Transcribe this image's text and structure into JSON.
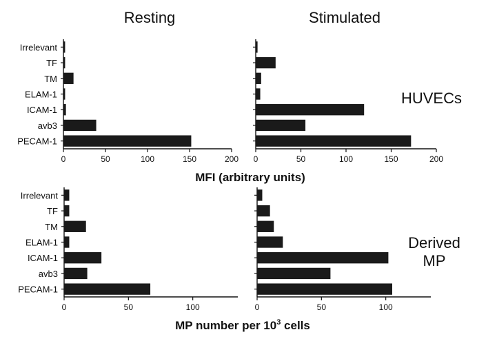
{
  "column_titles": [
    "Resting",
    "Stimulated"
  ],
  "row_labels": [
    "HUVECs",
    "Derived MP"
  ],
  "axis_labels": {
    "top": "MFI (arbitrary units)",
    "bottom": "MP number per 10",
    "bottom_superscript": "3",
    "bottom_suffix": " cells"
  },
  "chart_data": [
    {
      "type": "bar",
      "orientation": "horizontal",
      "panel": "HUVECs resting",
      "categories": [
        "Irrelevant",
        "TF",
        "TM",
        "ELAM-1",
        "ICAM-1",
        "avb3",
        "PECAM-1"
      ],
      "values": [
        2,
        2,
        12,
        2,
        3,
        39,
        152
      ],
      "title": "Resting",
      "xlabel": "MFI (arbitrary units)",
      "xlim": [
        0,
        200
      ],
      "xticks": [
        0,
        50,
        100,
        150,
        200
      ]
    },
    {
      "type": "bar",
      "orientation": "horizontal",
      "panel": "HUVECs stimulated",
      "categories": [
        "Irrelevant",
        "TF",
        "TM",
        "ELAM-1",
        "ICAM-1",
        "avb3",
        "PECAM-1"
      ],
      "values": [
        2,
        22,
        6,
        5,
        120,
        55,
        172
      ],
      "title": "Stimulated",
      "xlabel": "MFI (arbitrary units)",
      "xlim": [
        0,
        200
      ],
      "xticks": [
        0,
        50,
        100,
        150,
        200
      ]
    },
    {
      "type": "bar",
      "orientation": "horizontal",
      "panel": "Derived MP resting",
      "categories": [
        "Irrelevant",
        "TF",
        "TM",
        "ELAM-1",
        "ICAM-1",
        "avb3",
        "PECAM-1"
      ],
      "values": [
        4,
        4,
        17,
        4,
        29,
        18,
        67
      ],
      "xlabel": "MP number per 10^3 cells",
      "xlim": [
        0,
        135
      ],
      "xticks": [
        0,
        50,
        100
      ]
    },
    {
      "type": "bar",
      "orientation": "horizontal",
      "panel": "Derived MP stimulated",
      "categories": [
        "Irrelevant",
        "TF",
        "TM",
        "ELAM-1",
        "ICAM-1",
        "avb3",
        "PECAM-1"
      ],
      "values": [
        4,
        10,
        13,
        20,
        102,
        57,
        105
      ],
      "xlabel": "MP number per 10^3 cells",
      "xlim": [
        0,
        135
      ],
      "xticks": [
        0,
        50,
        100
      ]
    }
  ]
}
